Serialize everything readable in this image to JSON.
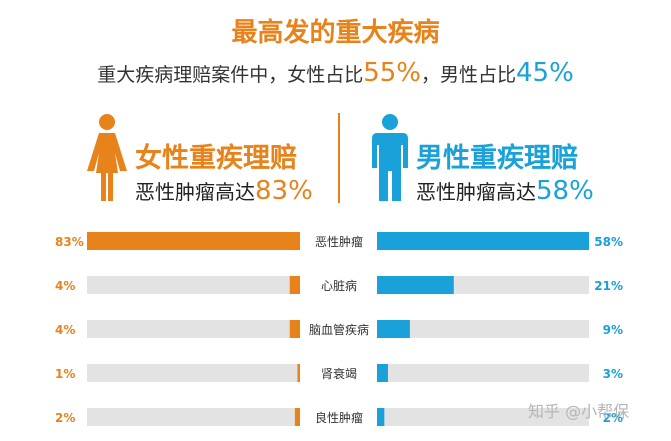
{
  "title": "最高发的重大疾病",
  "subtitle": {
    "prefix": "重大疾病理赔案件中，女性占比",
    "female_pct": "55%",
    "middle": "，男性占比",
    "male_pct": "45%"
  },
  "female": {
    "title": "女性重疾理赔",
    "sub_prefix": "恶性肿瘤高达",
    "sub_pct": "83%",
    "color": "#e8821a"
  },
  "male": {
    "title": "男性重疾理赔",
    "sub_prefix": "恶性肿瘤高达",
    "sub_pct": "58%",
    "color": "#1aa1d9"
  },
  "watermark": "知乎 @小帮保",
  "chart_data": {
    "type": "bar",
    "categories": [
      "恶性肿瘤",
      "心脏病",
      "脑血管疾病",
      "肾衰竭",
      "良性肿瘤"
    ],
    "series": [
      {
        "name": "女性重疾理赔",
        "values": [
          83,
          4,
          4,
          1,
          2
        ],
        "labels": [
          "83%",
          "4%",
          "4%",
          "1%",
          "2%"
        ],
        "color": "#e8821a"
      },
      {
        "name": "男性重疾理赔",
        "values": [
          58,
          21,
          9,
          3,
          2
        ],
        "labels": [
          "58%",
          "21%",
          "9%",
          "3%",
          "2%"
        ],
        "color": "#1aa1d9"
      }
    ],
    "track_color": "#e3e3e3",
    "xlim_female": [
      0,
      83
    ],
    "xlim_male": [
      0,
      58
    ]
  }
}
